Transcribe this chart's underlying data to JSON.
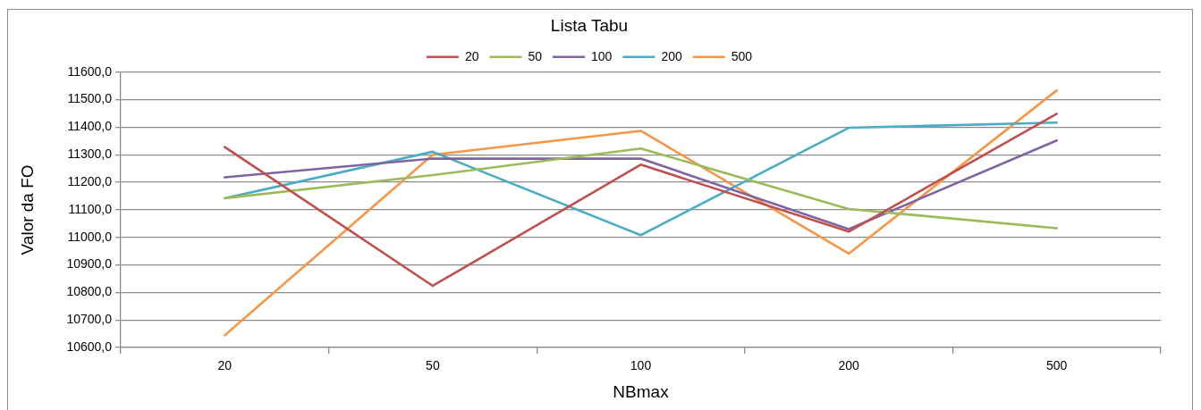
{
  "chart_data": {
    "type": "line",
    "xlabel": "NBmax",
    "ylabel": "Valor da FO",
    "legend_title": "Lista Tabu",
    "legend": "top",
    "grid": "y",
    "marker": "none",
    "line_style": "solid",
    "categories": [
      "20",
      "50",
      "100",
      "200",
      "500"
    ],
    "ylim": [
      10600,
      11600
    ],
    "yticks": [
      {
        "value": 10600,
        "label": "10600,0"
      },
      {
        "value": 10700,
        "label": "10700,0"
      },
      {
        "value": 10800,
        "label": "10800,0"
      },
      {
        "value": 10900,
        "label": "10900,0"
      },
      {
        "value": 11000,
        "label": "11000,0"
      },
      {
        "value": 11100,
        "label": "11100,0"
      },
      {
        "value": 11200,
        "label": "11200,0"
      },
      {
        "value": 11300,
        "label": "11300,0"
      },
      {
        "value": 11400,
        "label": "11400,0"
      },
      {
        "value": 11500,
        "label": "11500,0"
      },
      {
        "value": 11600,
        "label": "11600,0"
      }
    ],
    "series": [
      {
        "name": "20",
        "color": "#c0504d",
        "values": [
          11328,
          10824,
          11264,
          11021,
          11449
        ]
      },
      {
        "name": "50",
        "color": "#9bbb59",
        "values": [
          11142,
          11226,
          11323,
          11103,
          11033
        ]
      },
      {
        "name": "100",
        "color": "#8064a2",
        "values": [
          11218,
          11286,
          11286,
          11030,
          11352
        ]
      },
      {
        "name": "200",
        "color": "#4bacc6",
        "values": [
          11142,
          11311,
          11008,
          11398,
          11417
        ]
      },
      {
        "name": "500",
        "color": "#f79646",
        "values": [
          10644,
          11300,
          11387,
          10941,
          11534
        ]
      }
    ]
  }
}
